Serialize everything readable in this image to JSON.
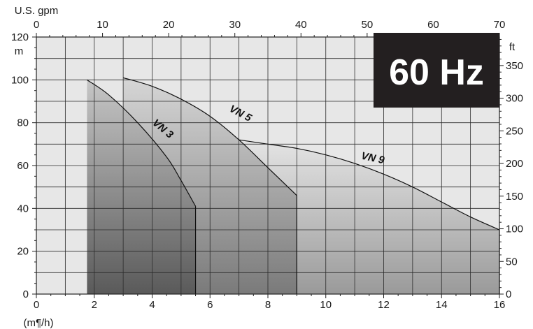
{
  "chart_data": {
    "type": "area",
    "badge": "60 Hz",
    "units": {
      "top_x": "U.S. gpm",
      "bottom_x": "(m¶/h)",
      "left_y": "m",
      "right_y": "ft"
    },
    "axes": {
      "x_bottom": {
        "range": [
          0,
          16
        ],
        "ticks": [
          0,
          2,
          4,
          6,
          8,
          10,
          12,
          14,
          16
        ]
      },
      "x_top": {
        "range": [
          0,
          70
        ],
        "ticks": [
          0,
          10,
          20,
          30,
          40,
          50,
          60,
          70
        ]
      },
      "y_left": {
        "range": [
          0,
          120
        ],
        "ticks": [
          0,
          20,
          40,
          60,
          80,
          100,
          120
        ]
      },
      "y_right": {
        "range": [
          0,
          393.7
        ],
        "ticks": [
          0,
          50,
          100,
          150,
          200,
          250,
          300,
          350
        ]
      }
    },
    "grid": true,
    "series": [
      {
        "name": "VN 3",
        "x_start": 1.75,
        "points": [
          [
            1.75,
            100
          ],
          [
            2.5,
            93
          ],
          [
            3.5,
            80
          ],
          [
            4.5,
            64
          ],
          [
            5.0,
            53
          ],
          [
            5.5,
            41
          ]
        ]
      },
      {
        "name": "VN 5",
        "x_start": 3.0,
        "points": [
          [
            3.0,
            101
          ],
          [
            4.0,
            97
          ],
          [
            5.0,
            91
          ],
          [
            6.0,
            83
          ],
          [
            7.0,
            72
          ],
          [
            8.0,
            59
          ],
          [
            9.0,
            46
          ]
        ]
      },
      {
        "name": "VN 9",
        "x_start": 7.0,
        "points": [
          [
            7.0,
            72
          ],
          [
            8.0,
            70
          ],
          [
            9.0,
            68
          ],
          [
            10.0,
            65
          ],
          [
            11.0,
            61
          ],
          [
            12.0,
            56
          ],
          [
            13.0,
            50
          ],
          [
            14.0,
            43
          ],
          [
            15.0,
            36
          ],
          [
            16.0,
            30
          ]
        ]
      }
    ]
  }
}
